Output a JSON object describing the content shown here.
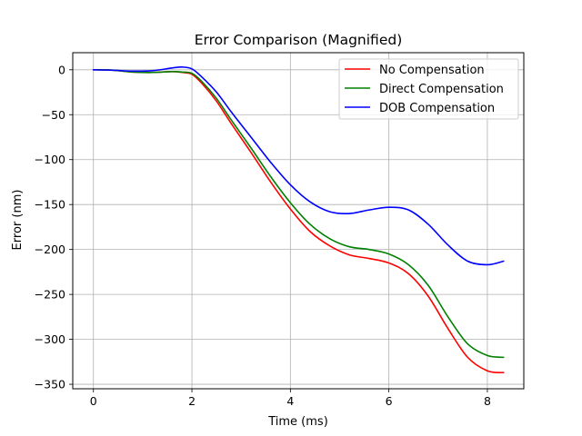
{
  "chart_data": {
    "type": "line",
    "title": "Error Comparison (Magnified)",
    "xlabel": "Time (ms)",
    "ylabel": "Error (nm)",
    "xlim": [
      -0.42,
      8.74
    ],
    "ylim": [
      -355,
      19
    ],
    "x_ticks": [
      0,
      2,
      4,
      6,
      8
    ],
    "x_tick_labels": [
      "0",
      "2",
      "4",
      "6",
      "8"
    ],
    "y_ticks": [
      0,
      -50,
      -100,
      -150,
      -200,
      -250,
      -300,
      -350
    ],
    "y_tick_labels": [
      "0",
      "−50",
      "−100",
      "−150",
      "−200",
      "−250",
      "−300",
      "−350"
    ],
    "grid": true,
    "legend_position": "top-right",
    "series": [
      {
        "name": "No Compensation",
        "color": "#ff0000",
        "x": [
          0,
          0.4,
          0.8,
          1.2,
          1.6,
          1.8,
          2.0,
          2.2,
          2.5,
          2.8,
          3.2,
          3.6,
          4.0,
          4.4,
          4.8,
          5.2,
          5.6,
          6.0,
          6.4,
          6.8,
          7.2,
          7.6,
          8.0,
          8.33
        ],
        "values": [
          0,
          -0.5,
          -2.5,
          -3,
          -2,
          -3,
          -5,
          -15,
          -35,
          -60,
          -92,
          -125,
          -155,
          -180,
          -196,
          -206,
          -210,
          -215,
          -227,
          -252,
          -288,
          -320,
          -335,
          -337
        ]
      },
      {
        "name": "Direct Compensation",
        "color": "#008000",
        "x": [
          0,
          0.4,
          0.8,
          1.2,
          1.6,
          1.8,
          2.0,
          2.2,
          2.5,
          2.8,
          3.2,
          3.6,
          4.0,
          4.4,
          4.8,
          5.2,
          5.6,
          6.0,
          6.4,
          6.8,
          7.2,
          7.6,
          8.0,
          8.33
        ],
        "values": [
          0,
          -0.5,
          -2.5,
          -3,
          -2,
          -2.5,
          -4,
          -13,
          -32,
          -56,
          -87,
          -119,
          -148,
          -172,
          -188,
          -197,
          -200,
          -205,
          -217,
          -240,
          -275,
          -305,
          -318,
          -320
        ]
      },
      {
        "name": "DOB Compensation",
        "color": "#0000ff",
        "x": [
          0,
          0.4,
          0.8,
          1.2,
          1.6,
          1.8,
          2.0,
          2.2,
          2.5,
          2.8,
          3.2,
          3.6,
          4.0,
          4.4,
          4.8,
          5.2,
          5.6,
          6.0,
          6.4,
          6.8,
          7.2,
          7.6,
          8.0,
          8.33
        ],
        "values": [
          0,
          -0.5,
          -1.5,
          -1,
          2,
          3,
          1,
          -8,
          -25,
          -47,
          -75,
          -103,
          -128,
          -147,
          -158,
          -160,
          -156,
          -153,
          -156,
          -172,
          -195,
          -213,
          -217,
          -213
        ]
      }
    ]
  }
}
